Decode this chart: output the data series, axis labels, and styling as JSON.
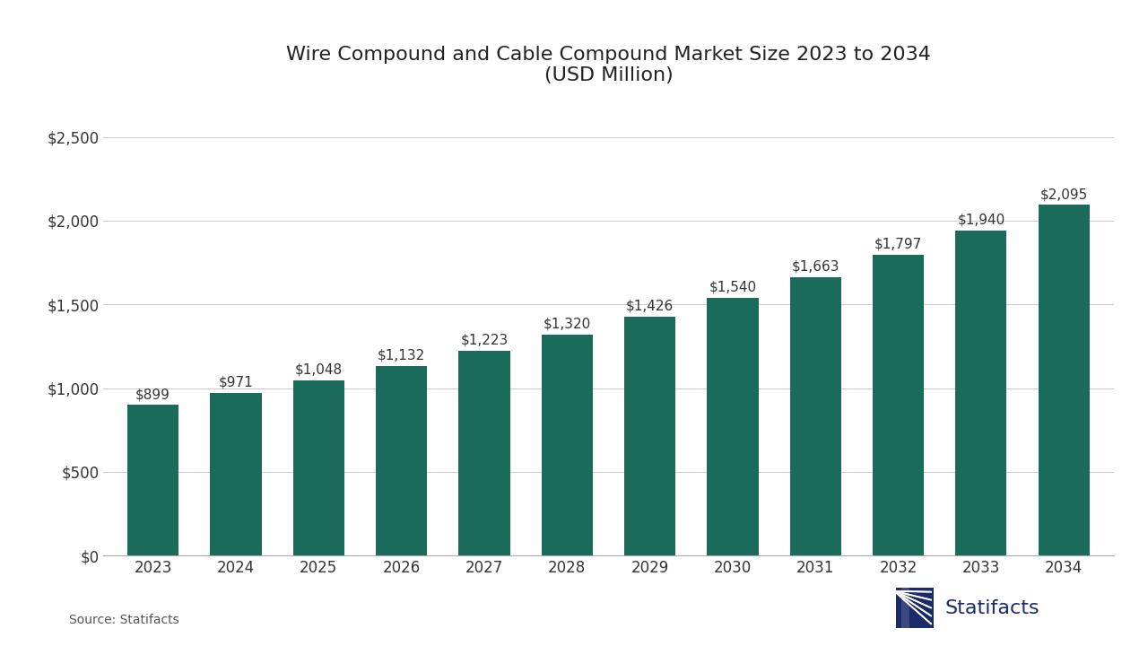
{
  "title_line1": "Wire Compound and Cable Compound Market Size 2023 to 2034",
  "title_line2": "(USD Million)",
  "years": [
    2023,
    2024,
    2025,
    2026,
    2027,
    2028,
    2029,
    2030,
    2031,
    2032,
    2033,
    2034
  ],
  "values": [
    899,
    971,
    1048,
    1132,
    1223,
    1320,
    1426,
    1540,
    1663,
    1797,
    1940,
    2095
  ],
  "labels": [
    "$899",
    "$971",
    "$1,048",
    "$1,132",
    "$1,223",
    "$1,320",
    "$1,426",
    "$1,540",
    "$1,663",
    "$1,797",
    "$1,940",
    "$2,095"
  ],
  "bar_color": "#1a6b5a",
  "background_color": "#ffffff",
  "yticks": [
    0,
    500,
    1000,
    1500,
    2000,
    2500
  ],
  "ytick_labels": [
    "$0",
    "$500",
    "$1,000",
    "$1,500",
    "$2,000",
    "$2,500"
  ],
  "ylim": [
    0,
    2700
  ],
  "source_text": "Source: Statifacts",
  "statifacts_text": "Statifacts",
  "title_fontsize": 16,
  "axis_fontsize": 12,
  "label_fontsize": 11,
  "source_fontsize": 10,
  "grid_color": "#cccccc",
  "axis_label_color": "#333333",
  "bar_label_color": "#333333",
  "navy_color": "#1b2a6b"
}
